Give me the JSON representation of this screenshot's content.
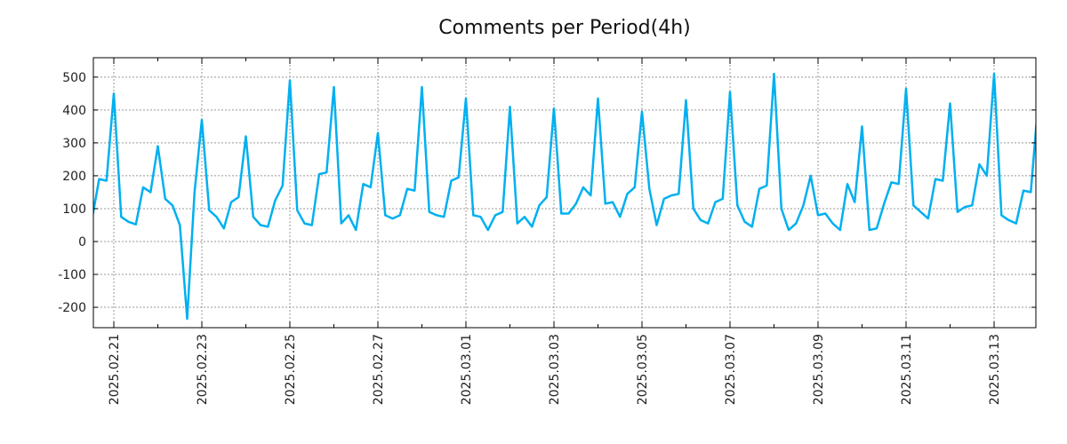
{
  "chart_data": {
    "type": "line",
    "title": "Comments per Period(4h)",
    "xlabel": "",
    "ylabel": "",
    "start": "2025-02-20 12:00",
    "interval_hours": 4,
    "ylim": [
      -262,
      559
    ],
    "yticks": [
      500,
      400,
      300,
      200,
      100,
      0,
      -100,
      -200
    ],
    "ytick_labels": [
      "500",
      "400",
      "300",
      "200",
      "100",
      "0",
      "-100",
      "-200"
    ],
    "xtick_labels": [
      "2025.02.21",
      "2025.02.23",
      "2025.02.25",
      "2025.02.27",
      "2025.03.01",
      "2025.03.03",
      "2025.03.05",
      "2025.03.07",
      "2025.03.09",
      "2025.03.11",
      "2025.03.13"
    ],
    "xtick_days_from_0221": [
      0,
      2,
      4,
      6,
      8,
      10,
      12,
      14,
      16,
      18,
      20
    ],
    "grid": true,
    "line_color": "#00b0f0",
    "series": [
      {
        "name": "comments",
        "values": [
          65,
          190,
          185,
          450,
          75,
          60,
          52,
          165,
          150,
          290,
          130,
          110,
          50,
          -235,
          150,
          370,
          95,
          75,
          40,
          120,
          135,
          320,
          75,
          50,
          45,
          125,
          170,
          490,
          95,
          55,
          50,
          205,
          210,
          470,
          55,
          80,
          35,
          175,
          165,
          330,
          80,
          70,
          80,
          160,
          155,
          470,
          90,
          80,
          75,
          185,
          195,
          435,
          80,
          75,
          35,
          80,
          90,
          410,
          55,
          75,
          45,
          110,
          135,
          405,
          85,
          85,
          115,
          165,
          140,
          435,
          115,
          120,
          75,
          145,
          165,
          395,
          160,
          50,
          130,
          140,
          145,
          430,
          100,
          65,
          55,
          120,
          130,
          455,
          110,
          60,
          45,
          160,
          170,
          510,
          100,
          35,
          55,
          110,
          200,
          80,
          85,
          55,
          35,
          175,
          120,
          350,
          35,
          40,
          115,
          180,
          175,
          465,
          110,
          90,
          70,
          190,
          185,
          420,
          90,
          105,
          110,
          235,
          200,
          510,
          80,
          65,
          55,
          155,
          150,
          420
        ]
      }
    ]
  }
}
